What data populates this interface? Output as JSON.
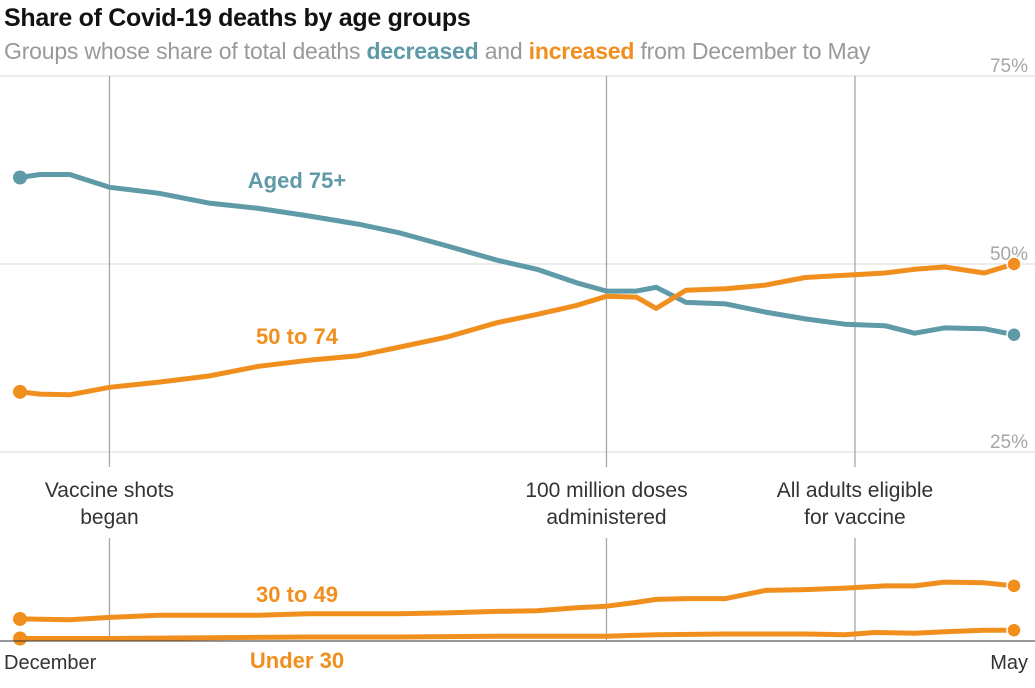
{
  "chart_data": {
    "type": "line",
    "title": "Share of Covid-19 deaths by age groups",
    "subtitle": {
      "prefix": "Groups whose share of total deaths ",
      "decreased": "decreased",
      "middle": " and ",
      "increased": "increased",
      "suffix": " from December to May"
    },
    "x_range": [
      0,
      100
    ],
    "x_tick_labels": [
      "December",
      "May"
    ],
    "ylim": [
      0,
      75
    ],
    "y_ticks": [
      {
        "value": 75,
        "label": "75%"
      },
      {
        "value": 50,
        "label": "50%"
      },
      {
        "value": 25,
        "label": "25%"
      }
    ],
    "grid": true,
    "colors": {
      "decreased": "#5f9aa9",
      "increased": "#f18f1e"
    },
    "annotations": [
      {
        "x": 9,
        "lines": [
          "Vaccine shots",
          "began"
        ]
      },
      {
        "x": 59,
        "lines": [
          "100 million doses",
          "administered"
        ]
      },
      {
        "x": 84,
        "lines": [
          "All adults eligible",
          "for vaccine"
        ]
      }
    ],
    "series": [
      {
        "name": "Aged 75+",
        "color": "#5f9aa9",
        "x": [
          0,
          2,
          5,
          9,
          14,
          19,
          24,
          29,
          34,
          38,
          43,
          48,
          52,
          56,
          59,
          62,
          64,
          67,
          71,
          75,
          79,
          83,
          87,
          90,
          93,
          97,
          100
        ],
        "y": [
          61.5,
          61.9,
          61.9,
          60.2,
          59.4,
          58.1,
          57.4,
          56.4,
          55.3,
          54.2,
          52.4,
          50.5,
          49.3,
          47.5,
          46.4,
          46.4,
          46.9,
          44.9,
          44.7,
          43.6,
          42.7,
          42.0,
          41.8,
          40.8,
          41.5,
          41.4,
          40.6
        ]
      },
      {
        "name": "50 to 74",
        "color": "#f18f1e",
        "x": [
          0,
          2,
          5,
          9,
          14,
          19,
          24,
          29,
          34,
          38,
          43,
          48,
          52,
          56,
          59,
          62,
          64,
          67,
          71,
          75,
          79,
          83,
          87,
          90,
          93,
          97,
          100
        ],
        "y": [
          33.0,
          32.7,
          32.6,
          33.6,
          34.3,
          35.1,
          36.4,
          37.2,
          37.8,
          38.9,
          40.3,
          42.2,
          43.3,
          44.5,
          45.7,
          45.6,
          44.1,
          46.5,
          46.7,
          47.2,
          48.2,
          48.5,
          48.8,
          49.3,
          49.6,
          48.8,
          50.0
        ]
      },
      {
        "name": "30 to 49",
        "color": "#f18f1e",
        "x": [
          0,
          5,
          9,
          14,
          19,
          24,
          29,
          34,
          38,
          43,
          48,
          52,
          56,
          59,
          62,
          64,
          67,
          71,
          75,
          79,
          83,
          87,
          90,
          93,
          97,
          100
        ],
        "y": [
          2.8,
          2.7,
          3.0,
          3.3,
          3.3,
          3.3,
          3.5,
          3.5,
          3.5,
          3.6,
          3.8,
          3.9,
          4.3,
          4.5,
          5.0,
          5.4,
          5.5,
          5.5,
          6.6,
          6.7,
          6.9,
          7.2,
          7.2,
          7.7,
          7.6,
          7.2
        ]
      },
      {
        "name": "Under 30",
        "color": "#f18f1e",
        "x": [
          0,
          9,
          19,
          29,
          38,
          48,
          55,
          59,
          64,
          71,
          79,
          83,
          86,
          90,
          93,
          97,
          100
        ],
        "y": [
          0.2,
          0.2,
          0.3,
          0.4,
          0.4,
          0.5,
          0.5,
          0.5,
          0.7,
          0.8,
          0.8,
          0.7,
          1.0,
          0.9,
          1.1,
          1.3,
          1.3
        ]
      }
    ]
  }
}
